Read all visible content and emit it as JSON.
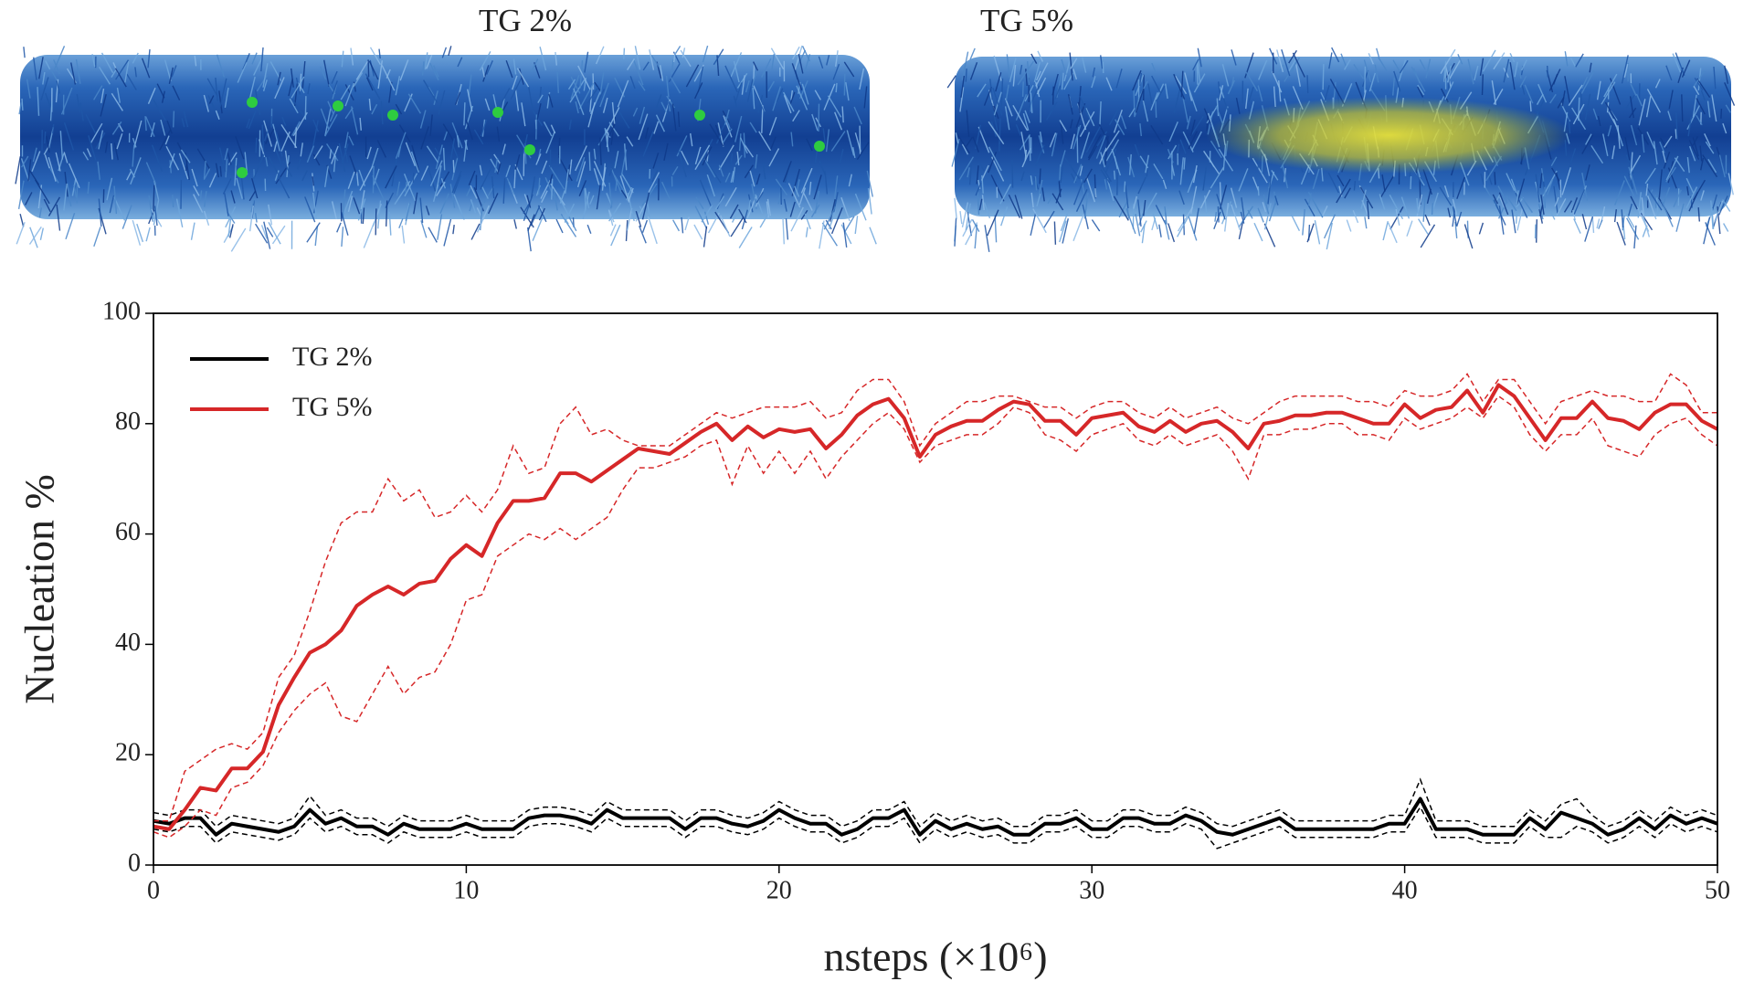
{
  "panels": [
    {
      "label": "TG 2%"
    },
    {
      "label": "TG 5%"
    }
  ],
  "chart_data": {
    "type": "line",
    "xlabel": "nsteps (×10⁶)",
    "ylabel": "Nucleation %",
    "xlim": [
      0,
      50
    ],
    "ylim": [
      0,
      100
    ],
    "xticks": [
      0,
      10,
      20,
      30,
      40,
      50
    ],
    "yticks": [
      0,
      20,
      40,
      60,
      80,
      100
    ],
    "grid": false,
    "legend": "upper left",
    "x": [
      0,
      0.5,
      1,
      1.5,
      2,
      2.5,
      3,
      3.5,
      4,
      4.5,
      5,
      5.5,
      6,
      6.5,
      7,
      7.5,
      8,
      8.5,
      9,
      9.5,
      10,
      10.5,
      11,
      11.5,
      12,
      12.5,
      13,
      13.5,
      14,
      14.5,
      15,
      15.5,
      16,
      16.5,
      17,
      17.5,
      18,
      18.5,
      19,
      19.5,
      20,
      20.5,
      21,
      21.5,
      22,
      22.5,
      23,
      23.5,
      24,
      24.5,
      25,
      25.5,
      26,
      26.5,
      27,
      27.5,
      28,
      28.5,
      29,
      29.5,
      30,
      30.5,
      31,
      31.5,
      32,
      32.5,
      33,
      33.5,
      34,
      34.5,
      35,
      35.5,
      36,
      36.5,
      37,
      37.5,
      38,
      38.5,
      39,
      39.5,
      40,
      40.5,
      41,
      41.5,
      42,
      42.5,
      43,
      43.5,
      44,
      44.5,
      45,
      45.5,
      46,
      46.5,
      47,
      47.5,
      48,
      48.5,
      49,
      49.5,
      50
    ],
    "series": [
      {
        "name": "TG 2%",
        "color": "#000000",
        "values": [
          8,
          7.5,
          8.5,
          8.5,
          5.5,
          7.5,
          7,
          6.5,
          6,
          7,
          10,
          7.5,
          8.5,
          7,
          7,
          5.5,
          7.5,
          6.5,
          6.5,
          6.5,
          7.5,
          6.5,
          6.5,
          6.5,
          8.5,
          9,
          9,
          8.5,
          7.5,
          10,
          8.5,
          8.5,
          8.5,
          8.5,
          6.5,
          8.5,
          8.5,
          7.5,
          7,
          8,
          10,
          8.5,
          7.5,
          7.5,
          5.5,
          6.5,
          8.5,
          8.5,
          10,
          5.5,
          8,
          6.5,
          7.5,
          6.5,
          7,
          5.5,
          5.5,
          7.5,
          7.5,
          8.5,
          6.5,
          6.5,
          8.5,
          8.5,
          7.5,
          7.5,
          9,
          8,
          6,
          5.5,
          6.5,
          7.5,
          8.5,
          6.5,
          6.5,
          6.5,
          6.5,
          6.5,
          6.5,
          7.5,
          7.5,
          12,
          6.5,
          6.5,
          6.5,
          5.5,
          5.5,
          5.5,
          8.5,
          6.5,
          9.5,
          8.5,
          7.5,
          5.5,
          6.5,
          8.5,
          6.5,
          9,
          7.5,
          8.5,
          7.5
        ],
        "upper": [
          9.5,
          9,
          10,
          10,
          7,
          9,
          8.5,
          8,
          7.5,
          8.5,
          12.5,
          9,
          10,
          8.5,
          8.5,
          7,
          9,
          8,
          8,
          8,
          9,
          8,
          8,
          8,
          10,
          10.5,
          10.5,
          10,
          9,
          11.5,
          10,
          10,
          10,
          10,
          8,
          10,
          10,
          9,
          8.5,
          9.5,
          11.5,
          10,
          9,
          9,
          7,
          8,
          10,
          10,
          11.5,
          7,
          9.5,
          8,
          9,
          8,
          8.5,
          7,
          7,
          9,
          9,
          10,
          8,
          8,
          10,
          10,
          9,
          9,
          10.5,
          9.5,
          7.5,
          7,
          8,
          9,
          10,
          8,
          8,
          8,
          8,
          8,
          8,
          9,
          9,
          15.5,
          8,
          8,
          8,
          7,
          7,
          7,
          10,
          8,
          11,
          12,
          9,
          7,
          8,
          10,
          8,
          10.5,
          9,
          10,
          9
        ],
        "lower": [
          6.5,
          6,
          7,
          7,
          4,
          6,
          5.5,
          5,
          4.5,
          5.5,
          8.5,
          6,
          7,
          5.5,
          5.5,
          4,
          6,
          5,
          5,
          5,
          6,
          5,
          5,
          5,
          7,
          7.5,
          7.5,
          7,
          6,
          8.5,
          7,
          7,
          7,
          7,
          5,
          7,
          7,
          6,
          5.5,
          6.5,
          8.5,
          7,
          6,
          6,
          4,
          5,
          7,
          7,
          8.5,
          4,
          6.5,
          5,
          6,
          5,
          5.5,
          4,
          4,
          6,
          6,
          7,
          5,
          5,
          7,
          7,
          6,
          6,
          7.5,
          6.5,
          3,
          4,
          5,
          6,
          7,
          5,
          5,
          5,
          5,
          5,
          5,
          6,
          6,
          10.5,
          5,
          5,
          5,
          4,
          4,
          4,
          7,
          5,
          5,
          7,
          6,
          4,
          5,
          7,
          5,
          7.5,
          6,
          7,
          6
        ]
      },
      {
        "name": "TG 5%",
        "color": "#d62728",
        "values": [
          7,
          6.5,
          10,
          14,
          13.5,
          17.5,
          17.5,
          20.5,
          29,
          34,
          38.5,
          40,
          42.5,
          47,
          49,
          50.5,
          49,
          51,
          51.5,
          55.5,
          58,
          56,
          62,
          66,
          66,
          66.5,
          71,
          71,
          69.5,
          71.5,
          73.5,
          75.5,
          75,
          74.5,
          76.5,
          78.5,
          80,
          77,
          79.5,
          77.5,
          79,
          78.5,
          79,
          75.5,
          78,
          81.5,
          83.5,
          84.5,
          81,
          74,
          78,
          79.5,
          80.5,
          80.5,
          82.5,
          84,
          83.5,
          80.5,
          80.5,
          78,
          81,
          81.5,
          82,
          79.5,
          78.5,
          80.5,
          78.5,
          80,
          80.5,
          78.5,
          75.5,
          80,
          80.5,
          81.5,
          81.5,
          82,
          82,
          81,
          80,
          80,
          83.5,
          81,
          82.5,
          83,
          86,
          82,
          87,
          85,
          81,
          77,
          81,
          81,
          84,
          81,
          80.5,
          79,
          82,
          83.5,
          83.5,
          80.5,
          79
        ],
        "upper": [
          8,
          8,
          17,
          19,
          21,
          22,
          21,
          24,
          34,
          38,
          46,
          55,
          62,
          64,
          64,
          70,
          66,
          68,
          63,
          64,
          67,
          64,
          68,
          76,
          71,
          72,
          80,
          83,
          78,
          79,
          77,
          76,
          76,
          76,
          78,
          80,
          82,
          81,
          82,
          83,
          83,
          83,
          84,
          81,
          82,
          86,
          88,
          88,
          84,
          76,
          80,
          82,
          84,
          84,
          85,
          85,
          84,
          83,
          83,
          81,
          83,
          84,
          84,
          82,
          81,
          83,
          81,
          82,
          83,
          81,
          80,
          82,
          84,
          85,
          85,
          85,
          85,
          84,
          84,
          83,
          86,
          85,
          85,
          86,
          89,
          84,
          88,
          88,
          84,
          80,
          84,
          85,
          86,
          85,
          85,
          84,
          84,
          89,
          87,
          82,
          82
        ],
        "lower": [
          6,
          5,
          7,
          10,
          9,
          14,
          15,
          18,
          24,
          28,
          31,
          33,
          27,
          26,
          31,
          36,
          31,
          34,
          35,
          40,
          48,
          49,
          56,
          58,
          60,
          59,
          61,
          59,
          61,
          63,
          68,
          72,
          72,
          73,
          74,
          76,
          77,
          69,
          76,
          71,
          75,
          71,
          75,
          70,
          74,
          77,
          80,
          82,
          79,
          73,
          76,
          77,
          78,
          78,
          80,
          83,
          82,
          78,
          77,
          75,
          78,
          79,
          80,
          77,
          76,
          78,
          76,
          77,
          78,
          75,
          70,
          78,
          78,
          79,
          79,
          80,
          80,
          78,
          78,
          77,
          81,
          79,
          80,
          81,
          83,
          81,
          85,
          83,
          78,
          75,
          78,
          78,
          81,
          76,
          75,
          74,
          78,
          80,
          81,
          78,
          76
        ]
      }
    ]
  }
}
